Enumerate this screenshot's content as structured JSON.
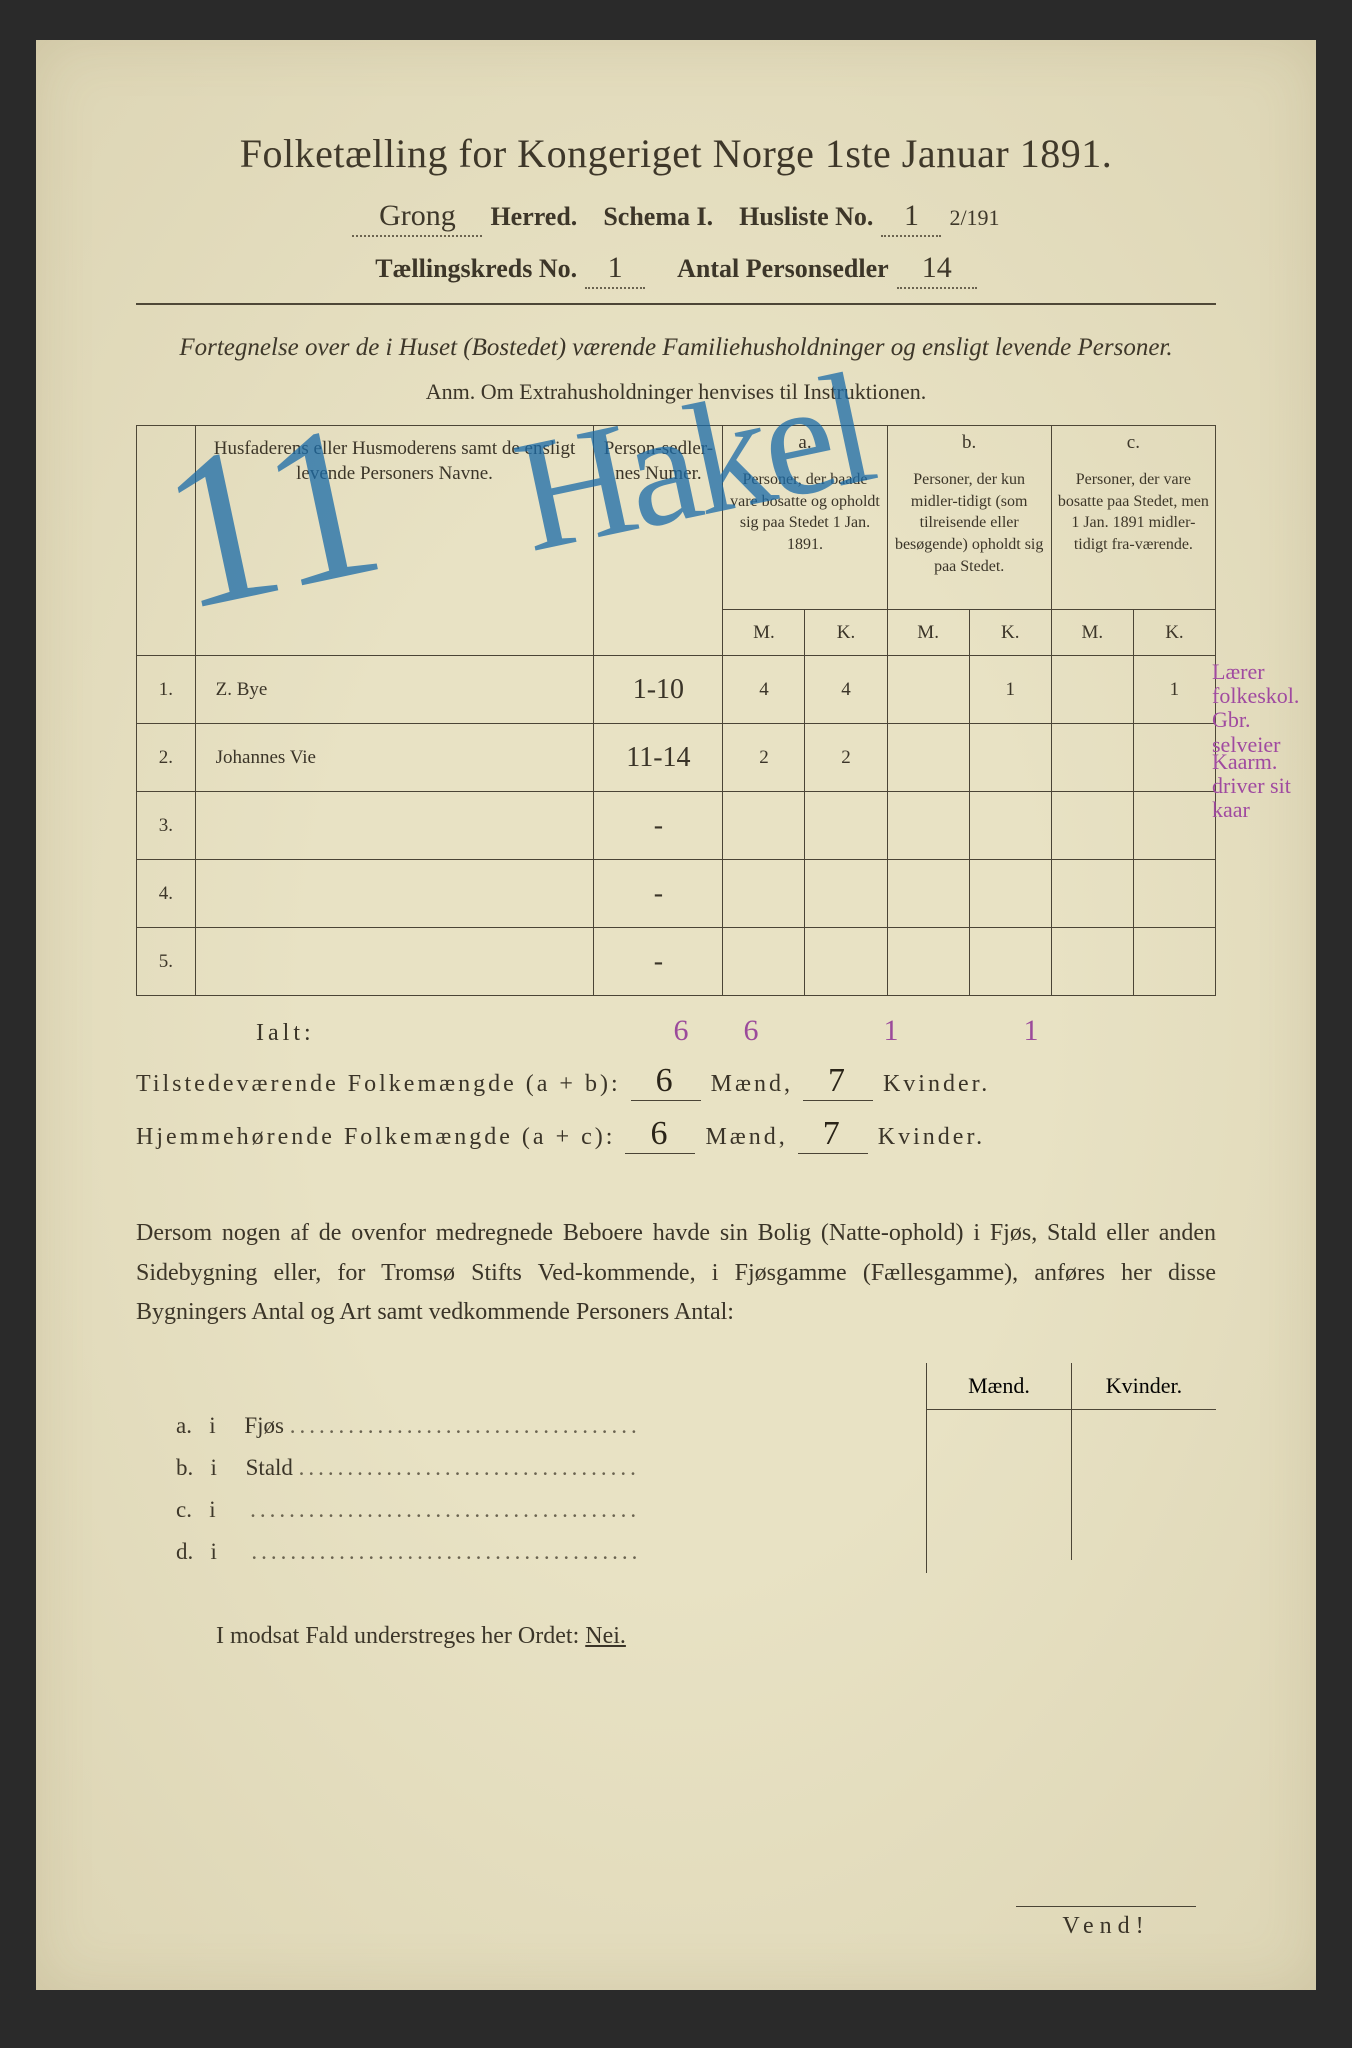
{
  "title": "Folketælling for Kongeriget Norge 1ste Januar 1891.",
  "header": {
    "herred_value": "Grong",
    "herred_label": "Herred.",
    "schema_label": "Schema I.",
    "husliste_label": "Husliste No.",
    "husliste_value": "1",
    "husliste_fraction": "2/191",
    "kreds_label": "Tællingskreds No.",
    "kreds_value": "1",
    "antal_label": "Antal Personsedler",
    "antal_value": "14"
  },
  "subheading": "Fortegnelse over de i Huset (Bostedet) værende Familiehusholdninger og ensligt levende Personer.",
  "subheading_small": "Anm. Om Extrahusholdninger henvises til Instruktionen.",
  "table": {
    "head_name": "Husfaderens eller Husmoderens samt de ensligt levende Personers Navne.",
    "head_ps": "Person-sedler-nes Numer.",
    "head_a_top": "a.",
    "head_a": "Personer, der baade vare bosatte og opholdt sig paa Stedet 1 Jan. 1891.",
    "head_b_top": "b.",
    "head_b": "Personer, der kun midler-tidigt (som tilreisende eller besøgende) opholdt sig paa Stedet.",
    "head_c_top": "c.",
    "head_c": "Personer, der vare bosatte paa Stedet, men 1 Jan. 1891 midler-tidigt fra-værende.",
    "mk_m": "M.",
    "mk_k": "K.",
    "rows": [
      {
        "n": "1.",
        "name": "Z. Bye",
        "ps": "1-10",
        "am": "4",
        "ak": "4",
        "bm": "",
        "bk": "1",
        "cm": "",
        "ck": "1"
      },
      {
        "n": "2.",
        "name": "Johannes Vie",
        "ps": "11-14",
        "am": "2",
        "ak": "2",
        "bm": "",
        "bk": "",
        "cm": "",
        "ck": ""
      },
      {
        "n": "3.",
        "name": "",
        "ps": "-",
        "am": "",
        "ak": "",
        "bm": "",
        "bk": "",
        "cm": "",
        "ck": ""
      },
      {
        "n": "4.",
        "name": "",
        "ps": "-",
        "am": "",
        "ak": "",
        "bm": "",
        "bk": "",
        "cm": "",
        "ck": ""
      },
      {
        "n": "5.",
        "name": "",
        "ps": "-",
        "am": "",
        "ak": "",
        "bm": "",
        "bk": "",
        "cm": "",
        "ck": ""
      }
    ],
    "ialt_label": "Ialt:",
    "ialt": {
      "am": "6",
      "ak": "6",
      "bm": "",
      "bk": "1",
      "cm": "",
      "ck": "1"
    }
  },
  "summary": {
    "line1_label": "Tilstedeværende Folkemængde (a + b):",
    "line1_m": "6",
    "line1_k": "7",
    "line2_label": "Hjemmehørende Folkemængde (a + c):",
    "line2_m": "6",
    "line2_k": "7",
    "maend": "Mænd,",
    "kvinder": "Kvinder."
  },
  "paragraph": "Dersom nogen af de ovenfor medregnede Beboere havde sin Bolig (Natte-ophold) i Fjøs, Stald eller anden Sidebygning eller, for Tromsø Stifts Ved-kommende, i Fjøsgamme (Fællesgamme), anføres her disse Bygningers Antal og Art samt vedkommende Personers Antal:",
  "bygn": {
    "head_m": "Mænd.",
    "head_k": "Kvinder.",
    "rows": [
      {
        "l": "a.",
        "i": "i",
        "t": "Fjøs"
      },
      {
        "l": "b.",
        "i": "i",
        "t": "Stald"
      },
      {
        "l": "c.",
        "i": "i",
        "t": ""
      },
      {
        "l": "d.",
        "i": "i",
        "t": ""
      }
    ]
  },
  "nei_line_pre": "I modsat Fald understreges her Ordet: ",
  "nei_word": "Nei.",
  "vend": "Vend!",
  "bluemark1": "11",
  "bluemark2": "Hakel",
  "margin1": "Lærer folkeskol. Gbr. selveier",
  "margin2": "Kaarm. driver sit kaar",
  "colors": {
    "paper": "#e8e2c4",
    "ink": "#3a3428",
    "blue": "#1a6ba8",
    "purple": "#a04aa0",
    "border": "#4a4436"
  }
}
